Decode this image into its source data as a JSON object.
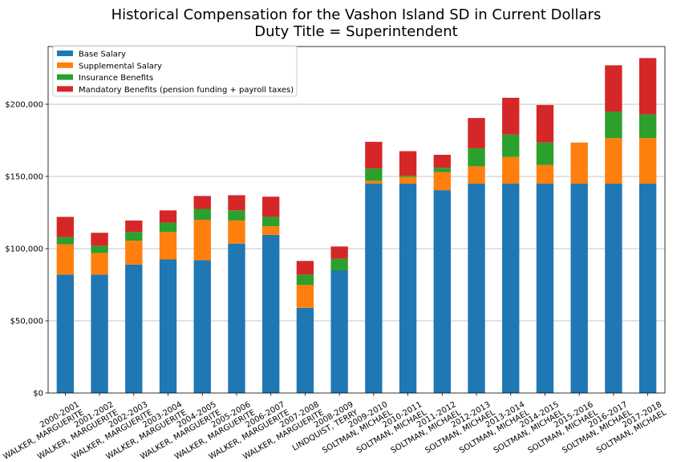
{
  "chart_data": {
    "type": "bar",
    "stacked": true,
    "title": "Historical Compensation for the Vashon Island SD in Current Dollars",
    "subtitle": "Duty Title = Superintendent",
    "xlabel": "",
    "ylabel": "",
    "ylim": [
      0,
      240000
    ],
    "yticks": [
      0,
      50000,
      100000,
      150000,
      200000
    ],
    "ytick_labels": [
      "$0",
      "$50,000",
      "$100,000",
      "$150,000",
      "$200,000"
    ],
    "grid": "horizontal",
    "legend_position": "top-left",
    "categories": [
      [
        "2000-2001",
        "WALKER, MARGUERITE"
      ],
      [
        "2001-2002",
        "WALKER, MARGUERITE"
      ],
      [
        "2002-2003",
        "WALKER, MARGUERITE"
      ],
      [
        "2003-2004",
        "WALKER, MARGUERITE"
      ],
      [
        "2004-2005",
        "WALKER, MARGUERITE"
      ],
      [
        "2005-2006",
        "WALKER, MARGUERITE"
      ],
      [
        "2006-2007",
        "WALKER, MARGUERITE"
      ],
      [
        "2007-2008",
        "WALKER, MARGUERITE"
      ],
      [
        "2008-2009",
        "LINDQUIST, TERRY"
      ],
      [
        "2009-2010",
        "SOLTMAN, MICHAEL"
      ],
      [
        "2010-2011",
        "SOLTMAN, MICHAEL"
      ],
      [
        "2011-2012",
        "SOLTMAN, MICHAEL"
      ],
      [
        "2012-2013",
        "SOLTMAN, MICHAEL"
      ],
      [
        "2013-2014",
        "SOLTMAN, MICHAEL"
      ],
      [
        "2014-2015",
        "SOLTMAN, MICHAEL"
      ],
      [
        "2015-2016",
        "SOLTMAN, MICHAEL"
      ],
      [
        "2016-2017",
        "SOLTMAN, MICHAEL"
      ],
      [
        "2017-2018",
        "SOLTMAN, MICHAEL"
      ]
    ],
    "series": [
      {
        "name": "Base Salary",
        "color": "#1f77b4",
        "values": [
          82000,
          82000,
          89000,
          92500,
          92000,
          103500,
          109500,
          59000,
          85000,
          145000,
          145000,
          140500,
          145000,
          145000,
          145000,
          145000,
          145000,
          145000
        ]
      },
      {
        "name": "Supplemental Salary",
        "color": "#ff7f0e",
        "values": [
          21000,
          15000,
          16500,
          19000,
          28000,
          16000,
          6000,
          16000,
          0,
          2000,
          4500,
          12500,
          12000,
          18500,
          13000,
          28500,
          31500,
          31500
        ]
      },
      {
        "name": "Insurance Benefits",
        "color": "#2ca02c",
        "values": [
          5000,
          5000,
          6000,
          6500,
          7500,
          7000,
          6500,
          7000,
          8000,
          8500,
          1000,
          3000,
          12500,
          15500,
          15500,
          0,
          18500,
          16500
        ]
      },
      {
        "name": "Mandatory Benefits (pension funding + payroll taxes)",
        "color": "#d62728",
        "values": [
          14000,
          9000,
          8000,
          8500,
          9000,
          10500,
          14000,
          9500,
          8500,
          18500,
          17000,
          9000,
          21000,
          25500,
          26000,
          0,
          32000,
          39000
        ]
      }
    ]
  }
}
